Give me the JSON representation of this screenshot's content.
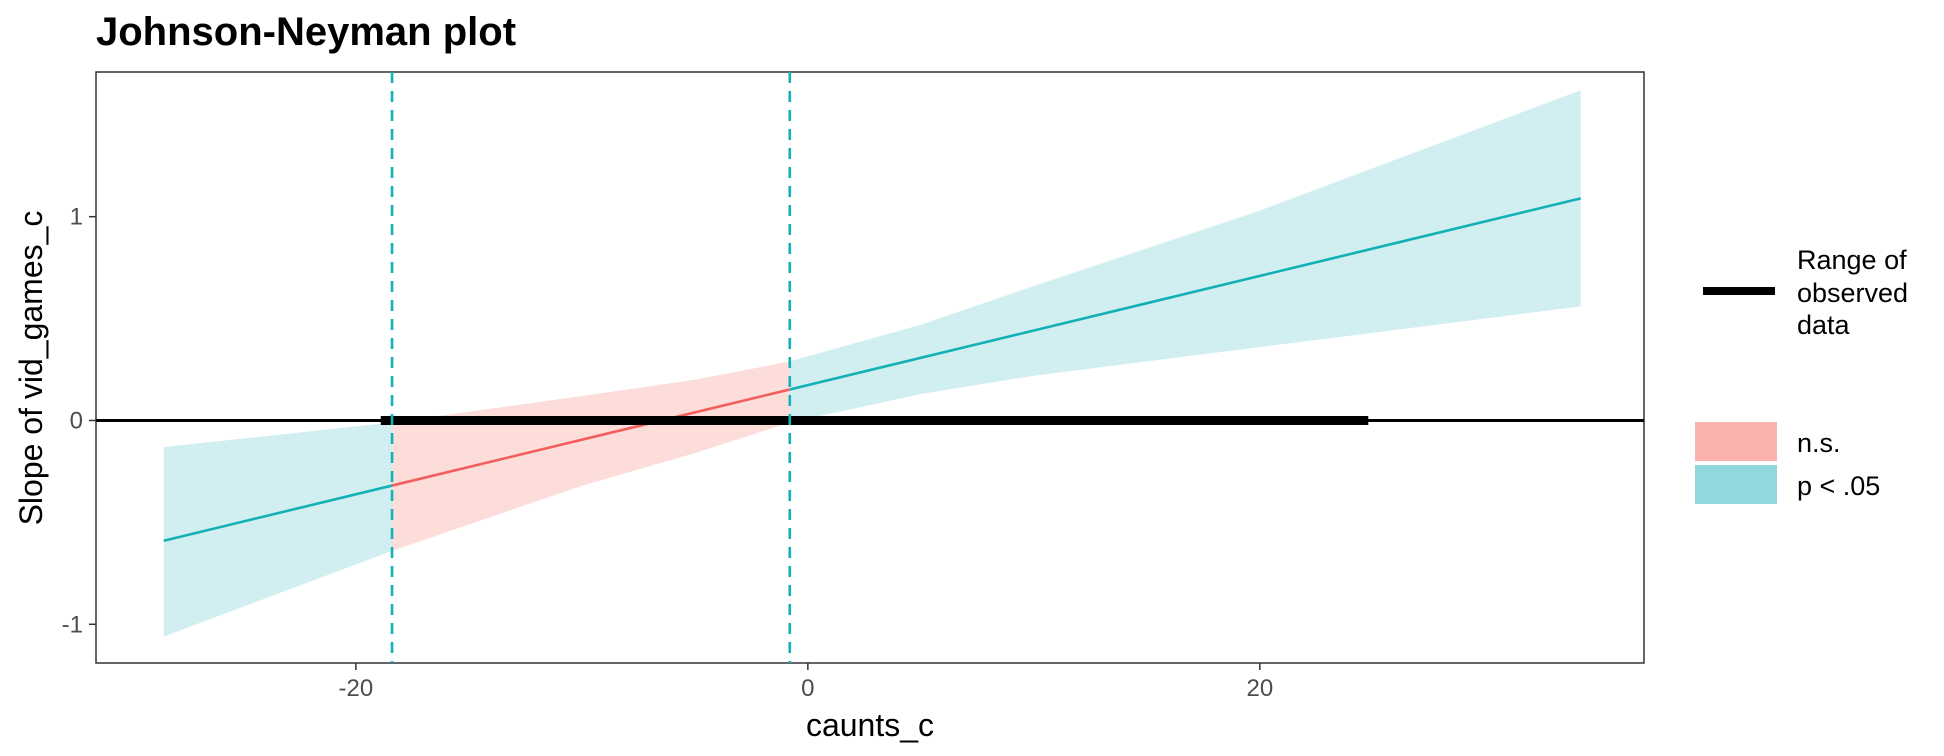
{
  "chart_data": {
    "type": "line",
    "title": "Johnson-Neyman plot",
    "xlabel": "caunts_c",
    "ylabel": "Slope of vid_games_c",
    "xlim": [
      -31.5,
      37.0
    ],
    "ylim": [
      -1.19,
      1.71
    ],
    "x_ticks": [
      -20,
      0,
      20
    ],
    "x_tick_labels": [
      "-20",
      "0",
      "20"
    ],
    "y_ticks": [
      -1,
      0,
      1
    ],
    "y_tick_labels": [
      "-1",
      "0",
      "1"
    ],
    "grid": false,
    "reference_line_y": 0,
    "johnson_neyman_bounds": [
      -18.4,
      -0.8
    ],
    "observed_range": [
      -18.9,
      24.8
    ],
    "slope_line": {
      "x": [
        -28.5,
        34.2
      ],
      "y": [
        -0.59,
        1.09
      ]
    },
    "confidence_band": {
      "x": [
        -28.5,
        -18.4,
        -10,
        -5,
        -0.8,
        5,
        10,
        20,
        34.2
      ],
      "lower": [
        -1.06,
        -0.64,
        -0.32,
        -0.16,
        -0.01,
        0.13,
        0.22,
        0.36,
        0.56
      ],
      "upper": [
        -0.13,
        -0.01,
        0.12,
        0.2,
        0.29,
        0.47,
        0.66,
        1.03,
        1.62
      ]
    },
    "series": [
      {
        "name": "n.s.",
        "color": "#F8766D",
        "band_color": "#FCDDDA",
        "legend_fill": "#F9B2AD",
        "x_range": [
          -18.4,
          -0.8
        ]
      },
      {
        "name": "p < .05",
        "color": "#00BFC4",
        "band_color": "#D1EFF1",
        "legend_fill": "#8FD9DC",
        "x_range": [
          [
            -28.5,
            -18.4
          ],
          [
            -0.8,
            34.2
          ]
        ]
      }
    ],
    "legend": {
      "position": "right",
      "range_label_lines": [
        "Range of",
        "observed",
        "data"
      ],
      "items": [
        "n.s.",
        "p < .05"
      ]
    },
    "line_color": "#13B0B5",
    "ns_line_color": "#F25F5A",
    "bound_color": "#13B0B5",
    "ref_line_color": "#000000"
  }
}
